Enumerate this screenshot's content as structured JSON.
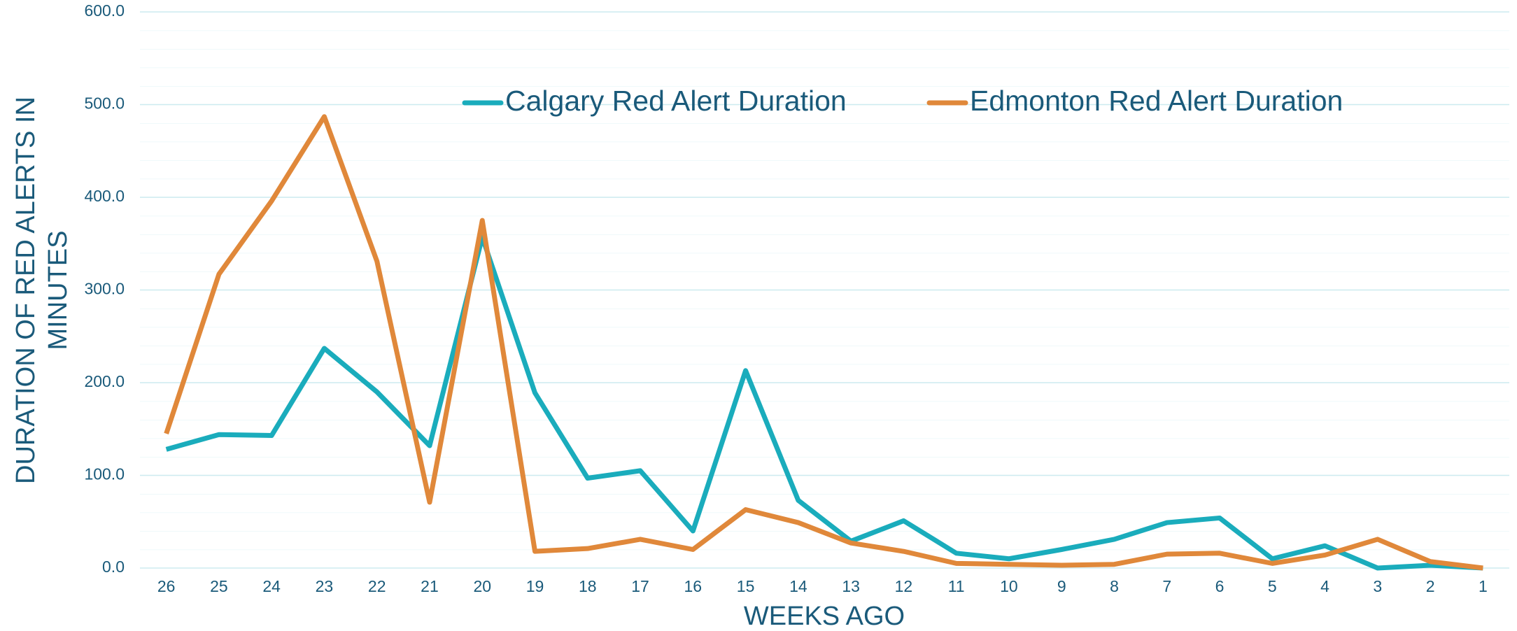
{
  "chart_data": {
    "type": "line",
    "x_label": "WEEKS AGO",
    "y_label": [
      "DURATION OF RED ALERTS IN",
      "MINUTES"
    ],
    "categories": [
      "26",
      "25",
      "24",
      "23",
      "22",
      "21",
      "20",
      "19",
      "18",
      "17",
      "16",
      "15",
      "14",
      "13",
      "12",
      "11",
      "10",
      "9",
      "8",
      "7",
      "6",
      "5",
      "4",
      "3",
      "2",
      "1"
    ],
    "series": [
      {
        "name": "Calgary Red Alert Duration",
        "color": "#1aacbc",
        "values": [
          128,
          144,
          143,
          237,
          190,
          132,
          357,
          189,
          97,
          105,
          40,
          213,
          73,
          29,
          51,
          16,
          10,
          20,
          31,
          49,
          54,
          10,
          24,
          0,
          3,
          0
        ]
      },
      {
        "name": "Edmonton Red Alert Duration",
        "color": "#e0883a",
        "values": [
          145,
          317,
          396,
          487,
          331,
          71,
          375,
          18,
          21,
          31,
          20,
          63,
          49,
          27,
          18,
          5,
          4,
          3,
          4,
          15,
          16,
          5,
          14,
          31,
          7,
          0
        ]
      }
    ],
    "ylim": [
      0,
      600
    ],
    "yticks": [
      {
        "value": 0,
        "label": "0.0"
      },
      {
        "value": 100,
        "label": "100.0"
      },
      {
        "value": 200,
        "label": "200.0"
      },
      {
        "value": 300,
        "label": "300.0"
      },
      {
        "value": 400,
        "label": "400.0"
      },
      {
        "value": 500,
        "label": "500.0"
      },
      {
        "value": 600,
        "label": "600.0"
      }
    ],
    "grid": true,
    "legend": "top"
  }
}
